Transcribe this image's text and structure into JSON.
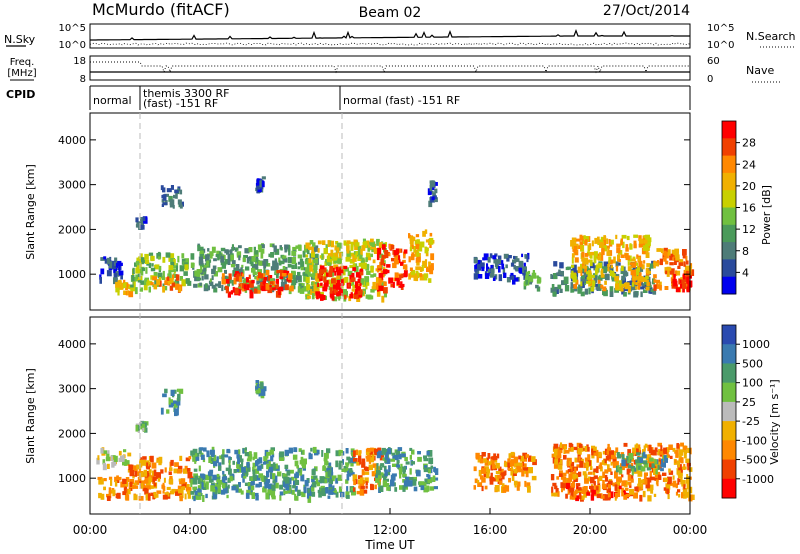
{
  "header": {
    "station": "McMurdo (fitACF)",
    "beam": "Beam 02",
    "date": "27/Oct/2014"
  },
  "top_panels": {
    "nsky_label": "N.Sky",
    "nsky_ticks": [
      "10^5",
      "10^0"
    ],
    "nsearch_ticks": [
      "10^5",
      "10^0"
    ],
    "nsearch_label": "N.Search",
    "freq_label_1": "Freq.",
    "freq_label_2": "[MHz]",
    "freq_ticks": [
      "18",
      "8"
    ],
    "nave_ticks": [
      "60",
      "0"
    ],
    "nave_label": "Nave",
    "cpid_label": "CPID",
    "cpid_segments": [
      {
        "start": 0.0,
        "end": 2.0,
        "line1": "normal",
        "line2": ""
      },
      {
        "start": 2.0,
        "end": 10.0,
        "line1": "themis 3300 RF",
        "line2": "(fast) -151 RF"
      },
      {
        "start": 10.0,
        "end": 24.0,
        "line1": "normal (fast) -151 RF",
        "line2": ""
      }
    ]
  },
  "chart_data": [
    {
      "type": "heatmap",
      "quantity": "Power",
      "ylabel": "Slant Range [km]",
      "ylim": [
        200,
        4600
      ],
      "yticks": [
        1000,
        2000,
        3000,
        4000
      ],
      "xlim": [
        0,
        24
      ],
      "colorbar_label": "Power [dB]",
      "colorbar_ticks": [
        "28",
        "24",
        "20",
        "16",
        "12",
        "8",
        "4"
      ],
      "colorbar_colors": [
        "#ff0000",
        "#f04000",
        "#ff8800",
        "#f0b000",
        "#c8d000",
        "#70c040",
        "#4a9a5a",
        "#4e7c78",
        "#2a4a9c",
        "#0000ee"
      ],
      "backscatter_blobs": [
        {
          "t0": 0.3,
          "t1": 1.3,
          "r0": 900,
          "r1": 1400,
          "c": 8
        },
        {
          "t0": 1.0,
          "t1": 1.6,
          "r0": 600,
          "r1": 900,
          "c": 3
        },
        {
          "t0": 1.6,
          "t1": 3.9,
          "r0": 700,
          "r1": 1500,
          "c": 5
        },
        {
          "t0": 2.4,
          "t1": 3.6,
          "r0": 700,
          "r1": 1000,
          "c": 2
        },
        {
          "t0": 2.8,
          "t1": 3.6,
          "r0": 2500,
          "r1": 3000,
          "c": 7
        },
        {
          "t0": 1.8,
          "t1": 2.2,
          "r0": 2100,
          "r1": 2300,
          "c": 8
        },
        {
          "t0": 4.0,
          "t1": 9.0,
          "r0": 700,
          "r1": 1700,
          "c": 6
        },
        {
          "t0": 5.2,
          "t1": 8.0,
          "r0": 600,
          "r1": 1100,
          "c": 1
        },
        {
          "t0": 6.6,
          "t1": 6.9,
          "r0": 2900,
          "r1": 3200,
          "c": 8
        },
        {
          "t0": 8.6,
          "t1": 11.8,
          "r0": 500,
          "r1": 1800,
          "c": 4
        },
        {
          "t0": 9.0,
          "t1": 10.8,
          "r0": 500,
          "r1": 1200,
          "c": 0
        },
        {
          "t0": 11.4,
          "t1": 12.6,
          "r0": 700,
          "r1": 1700,
          "c": 1
        },
        {
          "t0": 12.7,
          "t1": 13.7,
          "r0": 900,
          "r1": 2000,
          "c": 3
        },
        {
          "t0": 13.5,
          "t1": 13.8,
          "r0": 2600,
          "r1": 3100,
          "c": 8
        },
        {
          "t0": 15.3,
          "t1": 17.6,
          "r0": 900,
          "r1": 1500,
          "c": 8
        },
        {
          "t0": 17.3,
          "t1": 17.9,
          "r0": 700,
          "r1": 1100,
          "c": 6
        },
        {
          "t0": 18.4,
          "t1": 22.5,
          "r0": 600,
          "r1": 1300,
          "c": 7
        },
        {
          "t0": 19.2,
          "t1": 22.3,
          "r0": 700,
          "r1": 1900,
          "c": 3
        },
        {
          "t0": 22.5,
          "t1": 24.0,
          "r0": 700,
          "r1": 1600,
          "c": 2
        },
        {
          "t0": 23.2,
          "t1": 24.0,
          "r0": 700,
          "r1": 1100,
          "c": 0
        }
      ]
    },
    {
      "type": "heatmap",
      "quantity": "Velocity",
      "ylabel": "Slant Range [km]",
      "ylim": [
        200,
        4600
      ],
      "yticks": [
        1000,
        2000,
        3000,
        4000
      ],
      "xlim": [
        0,
        24
      ],
      "xticks": [
        "00:00",
        "04:00",
        "08:00",
        "12:00",
        "16:00",
        "20:00",
        "00:00"
      ],
      "xlabel": "Time UT",
      "colorbar_label": "Velocity [m s⁻¹]",
      "colorbar_ticks": [
        "1000",
        "500",
        "100",
        "25",
        "-25",
        "-100",
        "-500",
        "-1000"
      ],
      "colorbar_colors": [
        "#2a4ab0",
        "#3a7ab0",
        "#4a9a6a",
        "#70c040",
        "#bbbbbb",
        "#f0b000",
        "#ff8800",
        "#f04000",
        "#ff0000"
      ],
      "backscatter_blobs": [
        {
          "t0": 0.2,
          "t1": 1.5,
          "r0": 1300,
          "r1": 1700,
          "c": 4
        },
        {
          "t0": 0.3,
          "t1": 1.8,
          "r0": 600,
          "r1": 1100,
          "c": 6
        },
        {
          "t0": 1.5,
          "t1": 4.0,
          "r0": 600,
          "r1": 1500,
          "c": 6
        },
        {
          "t0": 2.8,
          "t1": 3.6,
          "r0": 2500,
          "r1": 3000,
          "c": 2
        },
        {
          "t0": 1.8,
          "t1": 2.2,
          "r0": 2100,
          "r1": 2300,
          "c": 3
        },
        {
          "t0": 4.0,
          "t1": 10.5,
          "r0": 600,
          "r1": 1700,
          "c": 2
        },
        {
          "t0": 6.6,
          "t1": 6.9,
          "r0": 2900,
          "r1": 3200,
          "c": 2
        },
        {
          "t0": 10.5,
          "t1": 11.6,
          "r0": 700,
          "r1": 1700,
          "c": 6
        },
        {
          "t0": 11.4,
          "t1": 13.8,
          "r0": 800,
          "r1": 1700,
          "c": 2
        },
        {
          "t0": 15.3,
          "t1": 17.7,
          "r0": 800,
          "r1": 1600,
          "c": 6
        },
        {
          "t0": 18.4,
          "t1": 24.0,
          "r0": 600,
          "r1": 1800,
          "c": 6
        },
        {
          "t0": 19.0,
          "t1": 21.5,
          "r0": 600,
          "r1": 900,
          "c": 7
        },
        {
          "t0": 21.0,
          "t1": 23.0,
          "r0": 1200,
          "r1": 1600,
          "c": 2
        }
      ]
    }
  ]
}
